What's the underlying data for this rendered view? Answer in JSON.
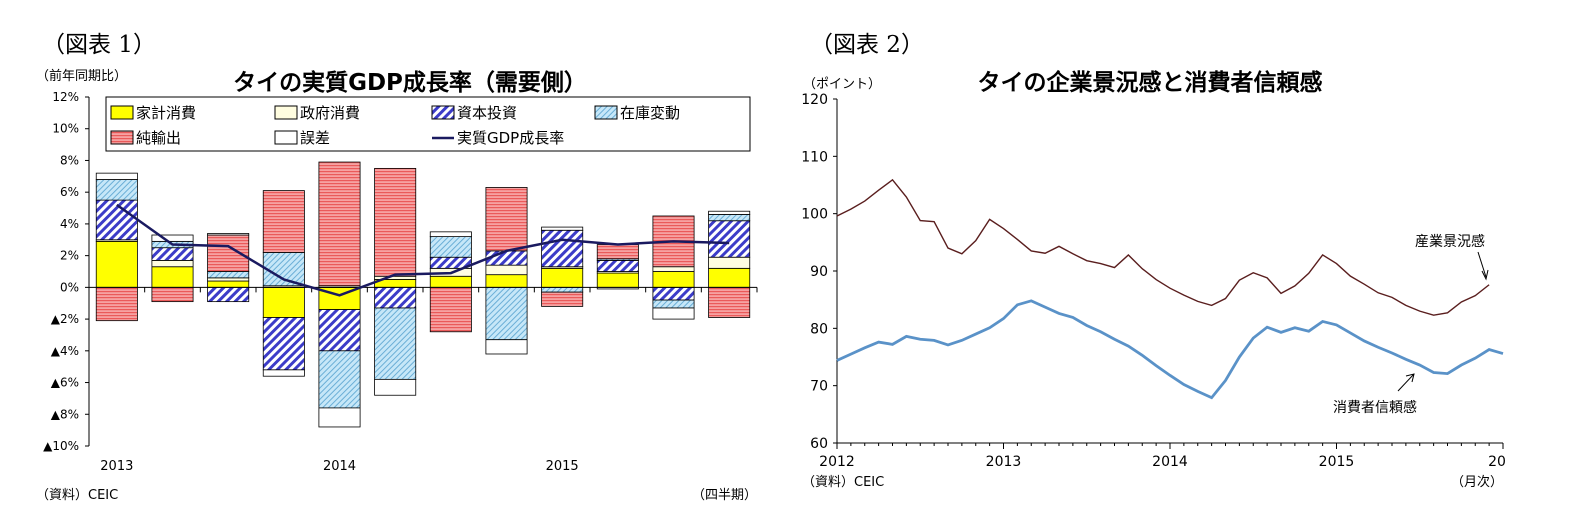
{
  "chart_data": [
    {
      "figure_label": "（図表 1）",
      "type": "bar",
      "stacked": true,
      "title": "タイの実質GDP成長率（需要側）",
      "unit_label": "（前年同期比）",
      "ylim": [
        -10,
        12
      ],
      "y_tick_values": [
        12,
        10,
        8,
        6,
        4,
        2,
        0,
        -2,
        -4,
        -6,
        -8,
        -10
      ],
      "y_tick_labels": [
        "12%",
        "10%",
        "8%",
        "6%",
        "4%",
        "2%",
        "0%",
        "▲2%",
        "▲4%",
        "▲6%",
        "▲8%",
        "▲10%"
      ],
      "x_labels": [
        {
          "text": "2013",
          "index": 0
        },
        {
          "text": "2014",
          "index": 4
        },
        {
          "text": "2015",
          "index": 8
        }
      ],
      "x_unit": "（四半期）",
      "source": "（資料）CEIC",
      "series": [
        {
          "name": "家計消費",
          "color": "#ffff00",
          "pattern": "solid",
          "values": [
            2.9,
            1.3,
            0.4,
            -1.9,
            -1.4,
            0.5,
            0.7,
            0.8,
            1.2,
            0.9,
            1.0,
            1.2
          ]
        },
        {
          "name": "政府消費",
          "color": "#fffde0",
          "pattern": "solid",
          "values": [
            0.1,
            0.4,
            0.2,
            0.1,
            0.1,
            0.2,
            0.5,
            0.6,
            0.1,
            0.1,
            0.3,
            0.7
          ]
        },
        {
          "name": "資本投資",
          "color": "#3c3cc8",
          "pattern": "diag",
          "values": [
            2.5,
            0.8,
            -0.9,
            -3.3,
            -2.6,
            -1.3,
            0.7,
            0.9,
            2.3,
            0.7,
            -0.8,
            2.3
          ]
        },
        {
          "name": "在庫変動",
          "color": "#a9d8f2",
          "pattern": "diagthin",
          "values": [
            1.3,
            0.4,
            0.4,
            2.1,
            -3.6,
            -4.5,
            1.3,
            -3.3,
            -0.3,
            0.1,
            -0.5,
            0.4
          ]
        },
        {
          "name": "純輸出",
          "color": "#f27878",
          "pattern": "hlines",
          "values": [
            -2.1,
            -0.9,
            2.3,
            3.9,
            7.8,
            6.8,
            -2.8,
            4.0,
            -0.9,
            0.9,
            3.2,
            -1.9
          ]
        },
        {
          "name": "誤差",
          "color": "#ffffff",
          "pattern": "solid",
          "values": [
            0.4,
            0.4,
            0.1,
            -0.4,
            -1.2,
            -1.0,
            0.3,
            -0.9,
            0.2,
            -0.1,
            -0.7,
            0.2
          ]
        }
      ],
      "line": {
        "name": "実質GDP成長率",
        "color": "#1a1a60",
        "values": [
          5.2,
          2.7,
          2.6,
          0.5,
          -0.5,
          0.8,
          0.9,
          2.3,
          3.0,
          2.7,
          2.9,
          2.8
        ]
      }
    },
    {
      "figure_label": "（図表 2）",
      "type": "line",
      "title": "タイの企業景況感と消費者信頼感",
      "unit_label": "（ポイント）",
      "ylim": [
        60,
        120
      ],
      "y_tick_values": [
        120,
        110,
        100,
        90,
        80,
        70,
        60
      ],
      "y_tick_labels": [
        "120",
        "110",
        "100",
        "90",
        "80",
        "70",
        "60"
      ],
      "x_labels": [
        {
          "text": "2012",
          "index": 0
        },
        {
          "text": "2013",
          "index": 12
        },
        {
          "text": "2014",
          "index": 24
        },
        {
          "text": "2015",
          "index": 36
        },
        {
          "text": "20",
          "index": 48
        }
      ],
      "x_unit": "（月次）",
      "source": "（資料）CEIC",
      "series": [
        {
          "name": "産業景況感",
          "color": "#5a1e1e",
          "values": [
            99.6,
            100.8,
            102.2,
            104.1,
            105.9,
            102.9,
            98.8,
            98.6,
            94.0,
            93.0,
            95.3,
            99.0,
            97.4,
            95.5,
            93.5,
            93.1,
            94.3,
            93.0,
            91.8,
            91.3,
            90.6,
            92.8,
            90.4,
            88.5,
            87.0,
            85.8,
            84.7,
            84.0,
            85.2,
            88.4,
            89.7,
            88.8,
            86.1,
            87.4,
            89.6,
            92.8,
            91.3,
            89.1,
            87.7,
            86.2,
            85.4,
            84.0,
            83.0,
            82.3,
            82.7,
            84.6,
            85.7,
            87.6
          ]
        },
        {
          "name": "消費者信頼感",
          "color": "#5a92c8",
          "values": [
            74.4,
            75.5,
            76.6,
            77.6,
            77.2,
            78.6,
            78.1,
            77.9,
            77.1,
            77.9,
            79.0,
            80.1,
            81.7,
            84.1,
            84.8,
            83.7,
            82.6,
            81.9,
            80.5,
            79.4,
            78.1,
            76.9,
            75.3,
            73.5,
            71.8,
            70.2,
            69.0,
            67.9,
            70.9,
            75.0,
            78.3,
            80.2,
            79.3,
            80.1,
            79.5,
            81.2,
            80.6,
            79.2,
            77.8,
            76.7,
            75.7,
            74.6,
            73.6,
            72.3,
            72.1,
            73.6,
            74.8,
            76.3,
            75.6
          ]
        }
      ],
      "annotations": [
        {
          "text": "産業景況感",
          "series": "産業景況感"
        },
        {
          "text": "消費者信頼感",
          "series": "消費者信頼感"
        }
      ]
    }
  ]
}
